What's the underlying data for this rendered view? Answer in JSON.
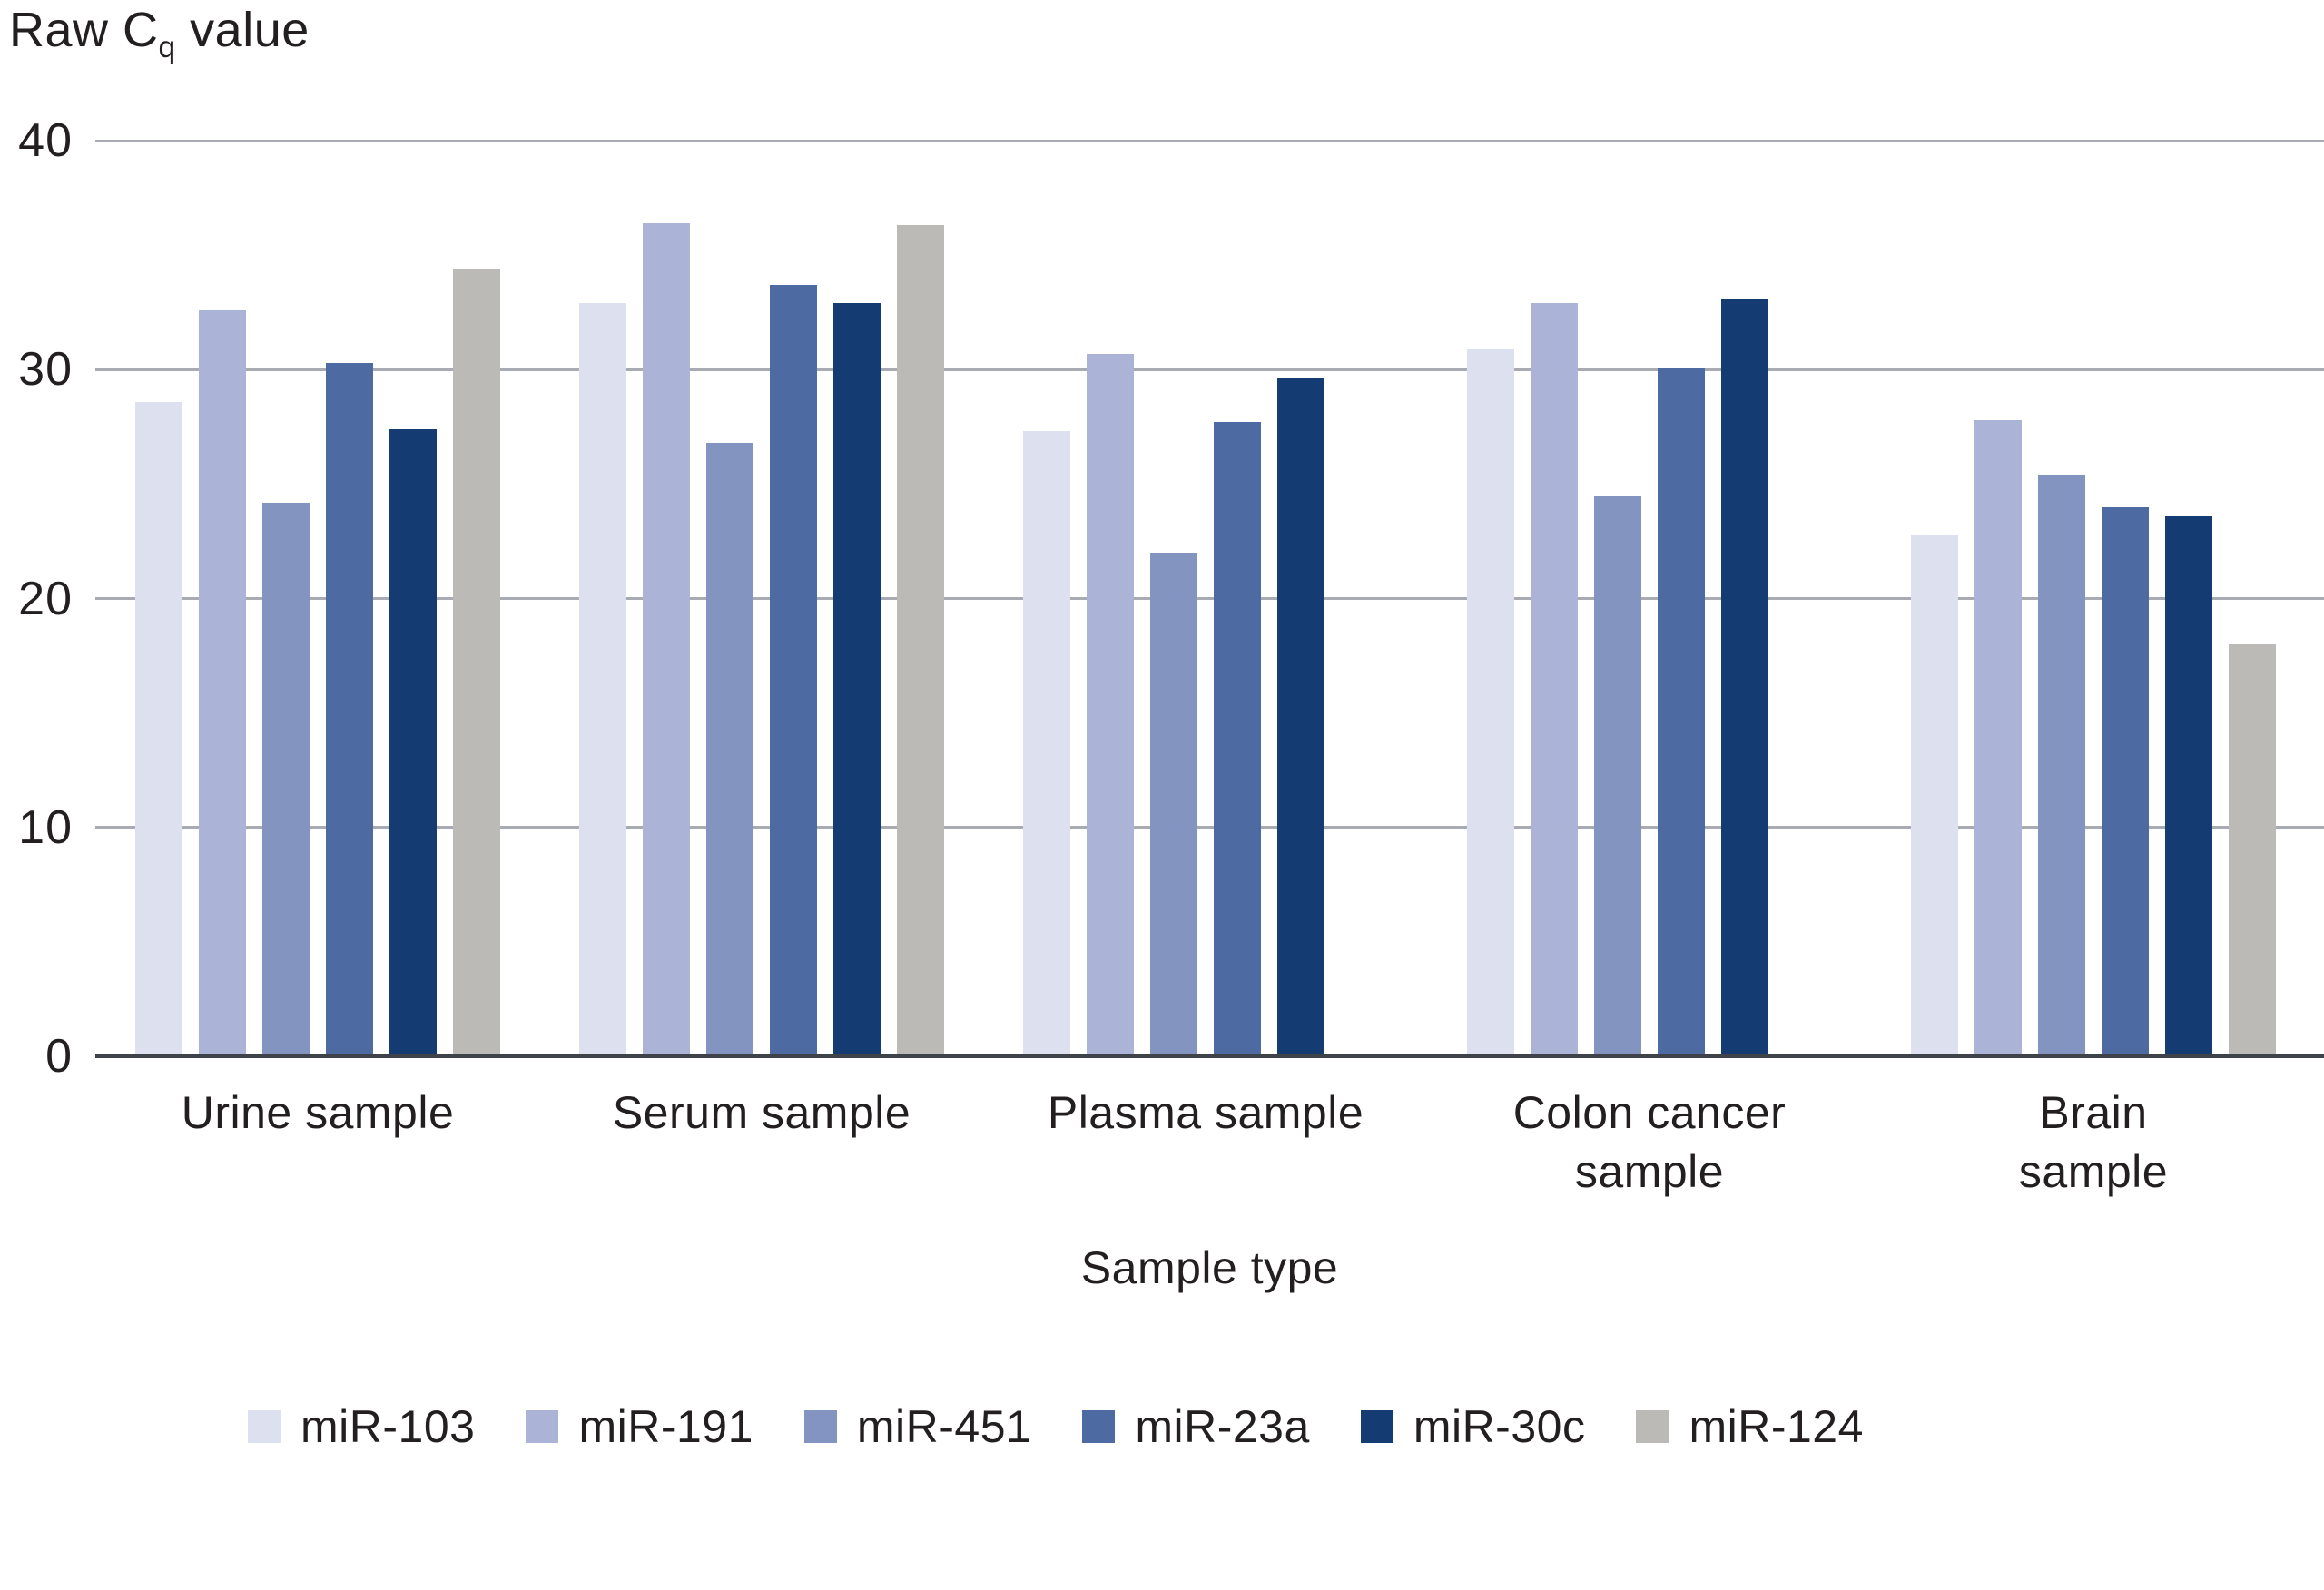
{
  "chart_data": {
    "type": "bar",
    "title": "Raw Cq value",
    "title_parts": {
      "prefix": "Raw C",
      "sub": "q",
      "suffix": " value"
    },
    "xlabel": "Sample type",
    "ylabel": "Raw Cq value",
    "ylim": [
      0,
      40
    ],
    "yticks": [
      0,
      10,
      20,
      30,
      40
    ],
    "grid": true,
    "legend_position": "bottom",
    "categories": [
      "Urine sample",
      "Serum sample",
      "Plasma sample",
      "Colon cancer\nsample",
      "Brain sample"
    ],
    "series": [
      {
        "name": "miR-103",
        "color": "#dde0ee",
        "values": [
          28.6,
          32.9,
          27.3,
          30.9,
          22.8
        ]
      },
      {
        "name": "miR-191",
        "color": "#abb3d6",
        "values": [
          32.6,
          36.4,
          30.7,
          32.9,
          27.8
        ]
      },
      {
        "name": "miR-451",
        "color": "#8494c1",
        "values": [
          24.2,
          26.8,
          22.0,
          24.5,
          25.4
        ]
      },
      {
        "name": "miR-23a",
        "color": "#4d6aa2",
        "values": [
          30.3,
          33.7,
          27.7,
          30.1,
          24.0
        ]
      },
      {
        "name": "miR-30c",
        "color": "#143c72",
        "values": [
          27.4,
          32.9,
          29.6,
          33.1,
          23.6
        ]
      },
      {
        "name": "miR-124",
        "color": "#bcbab7",
        "values": [
          34.4,
          36.3,
          null,
          null,
          18.0
        ]
      }
    ],
    "colors": {
      "gridline": "#a9abb2",
      "axis": "#3e4249",
      "text": "#231f20",
      "background": "#ffffff"
    }
  }
}
